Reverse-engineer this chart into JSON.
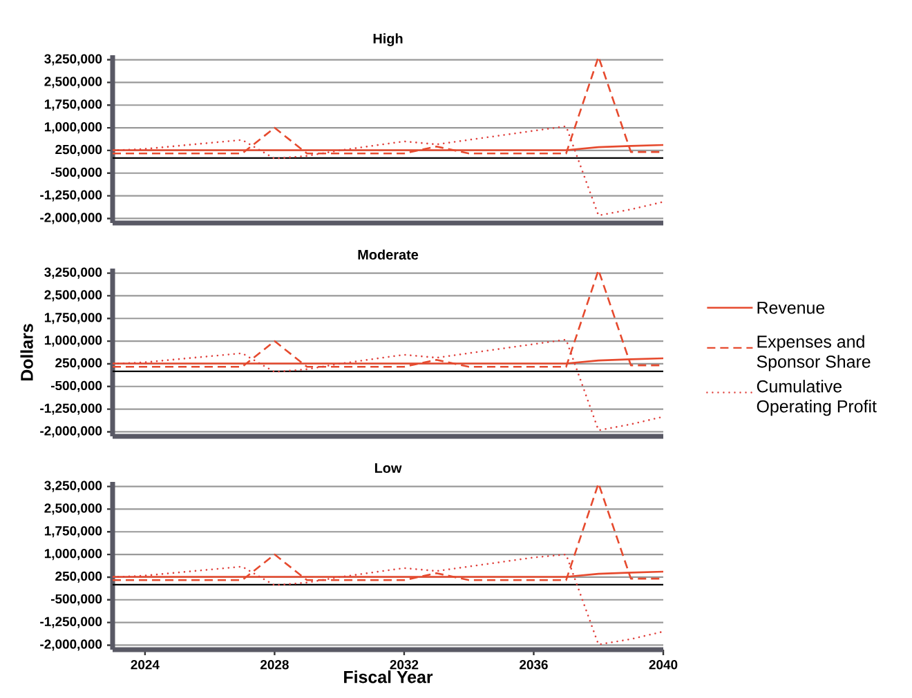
{
  "chart_data": [
    {
      "type": "line",
      "title": "High",
      "x": [
        2023,
        2024,
        2025,
        2026,
        2027,
        2028,
        2029,
        2030,
        2031,
        2032,
        2033,
        2034,
        2035,
        2036,
        2037,
        2038,
        2039,
        2040
      ],
      "series": [
        {
          "color": "#e64a2e",
          "line_style": "solid",
          "values": [
            260000,
            260000,
            260000,
            260000,
            260000,
            260000,
            260000,
            260000,
            260000,
            260000,
            260000,
            260000,
            260000,
            260000,
            260000,
            360000,
            400000,
            430000
          ]
        },
        {
          "color": "#e64a2e",
          "line_style": "dashed",
          "values": [
            150000,
            150000,
            150000,
            150000,
            150000,
            1000000,
            150000,
            150000,
            150000,
            150000,
            380000,
            150000,
            150000,
            150000,
            150000,
            3350000,
            200000,
            200000
          ]
        },
        {
          "color": "#e0403c",
          "line_style": "dotted",
          "values": [
            250000,
            300000,
            400000,
            500000,
            600000,
            -20000,
            70000,
            250000,
            400000,
            550000,
            450000,
            600000,
            750000,
            900000,
            1050000,
            -1900000,
            -1700000,
            -1450000
          ]
        }
      ],
      "xlim": [
        2023,
        2040
      ],
      "ylim": [
        -2150000,
        3400000
      ],
      "xticks": [
        2024,
        2028,
        2032,
        2036,
        2040
      ],
      "yticks": [
        {
          "value": 3250000,
          "label": "3,250,000"
        },
        {
          "value": 2500000,
          "label": "2,500,000"
        },
        {
          "value": 1750000,
          "label": "1,750,000"
        },
        {
          "value": 1000000,
          "label": "1,000,000"
        },
        {
          "value": 250000,
          "label": "250,000"
        },
        {
          "value": -500000,
          "label": "-500,000"
        },
        {
          "value": -1250000,
          "label": "-1,250,000"
        },
        {
          "value": -2000000,
          "label": "-2,000,000"
        }
      ],
      "grid": "y",
      "tick_labels": "y",
      "ref_lines": [
        {
          "axis": "y",
          "value": 0,
          "color": "#000000"
        }
      ]
    },
    {
      "type": "line",
      "title": "Moderate",
      "ylabel": "Dollars",
      "legend": "right",
      "x": [
        2023,
        2024,
        2025,
        2026,
        2027,
        2028,
        2029,
        2030,
        2031,
        2032,
        2033,
        2034,
        2035,
        2036,
        2037,
        2038,
        2039,
        2040
      ],
      "series": [
        {
          "name": "Revenue",
          "color": "#e64a2e",
          "line_style": "solid",
          "values": [
            260000,
            260000,
            260000,
            260000,
            260000,
            260000,
            260000,
            260000,
            260000,
            260000,
            260000,
            260000,
            260000,
            260000,
            260000,
            360000,
            400000,
            430000
          ]
        },
        {
          "name": "Expenses and Sponsor Share",
          "color": "#e64a2e",
          "line_style": "dashed",
          "values": [
            150000,
            150000,
            150000,
            150000,
            150000,
            1000000,
            150000,
            150000,
            150000,
            150000,
            380000,
            150000,
            150000,
            150000,
            150000,
            3350000,
            200000,
            200000
          ]
        },
        {
          "name": "Cumulative Operating Profit",
          "color": "#e0403c",
          "line_style": "dotted",
          "values": [
            250000,
            300000,
            400000,
            500000,
            600000,
            -20000,
            70000,
            250000,
            400000,
            550000,
            450000,
            600000,
            750000,
            900000,
            1050000,
            -1950000,
            -1750000,
            -1500000
          ]
        }
      ],
      "xlim": [
        2023,
        2040
      ],
      "ylim": [
        -2150000,
        3400000
      ],
      "xticks": [
        2024,
        2028,
        2032,
        2036,
        2040
      ],
      "yticks": [
        {
          "value": 3250000,
          "label": "3,250,000"
        },
        {
          "value": 2500000,
          "label": "2,500,000"
        },
        {
          "value": 1750000,
          "label": "1,750,000"
        },
        {
          "value": 1000000,
          "label": "1,000,000"
        },
        {
          "value": 250000,
          "label": "250,000"
        },
        {
          "value": -500000,
          "label": "-500,000"
        },
        {
          "value": -1250000,
          "label": "-1,250,000"
        },
        {
          "value": -2000000,
          "label": "-2,000,000"
        }
      ],
      "grid": "y",
      "tick_labels": "y",
      "ref_lines": [
        {
          "axis": "y",
          "value": 0,
          "color": "#000000"
        }
      ]
    },
    {
      "type": "line",
      "title": "Low",
      "xlabel": "Fiscal Year",
      "x": [
        2023,
        2024,
        2025,
        2026,
        2027,
        2028,
        2029,
        2030,
        2031,
        2032,
        2033,
        2034,
        2035,
        2036,
        2037,
        2038,
        2039,
        2040
      ],
      "series": [
        {
          "color": "#e64a2e",
          "line_style": "solid",
          "values": [
            260000,
            260000,
            260000,
            260000,
            260000,
            260000,
            260000,
            260000,
            260000,
            260000,
            260000,
            260000,
            260000,
            260000,
            260000,
            360000,
            400000,
            430000
          ]
        },
        {
          "color": "#e64a2e",
          "line_style": "dashed",
          "values": [
            150000,
            150000,
            150000,
            150000,
            150000,
            1000000,
            150000,
            150000,
            150000,
            150000,
            380000,
            150000,
            150000,
            150000,
            150000,
            3350000,
            200000,
            200000
          ]
        },
        {
          "color": "#e0403c",
          "line_style": "dotted",
          "values": [
            250000,
            300000,
            400000,
            500000,
            600000,
            -20000,
            70000,
            250000,
            400000,
            550000,
            450000,
            600000,
            750000,
            900000,
            1000000,
            -1980000,
            -1800000,
            -1550000
          ]
        }
      ],
      "xlim": [
        2023,
        2040
      ],
      "ylim": [
        -2150000,
        3400000
      ],
      "xticks": [
        2024,
        2028,
        2032,
        2036,
        2040
      ],
      "yticks": [
        {
          "value": 3250000,
          "label": "3,250,000"
        },
        {
          "value": 2500000,
          "label": "2,500,000"
        },
        {
          "value": 1750000,
          "label": "1,750,000"
        },
        {
          "value": 1000000,
          "label": "1,000,000"
        },
        {
          "value": 250000,
          "label": "250,000"
        },
        {
          "value": -500000,
          "label": "-500,000"
        },
        {
          "value": -1250000,
          "label": "-1,250,000"
        },
        {
          "value": -2000000,
          "label": "-2,000,000"
        }
      ],
      "grid": "y",
      "ref_lines": [
        {
          "axis": "y",
          "value": 0,
          "color": "#000000"
        }
      ]
    }
  ]
}
